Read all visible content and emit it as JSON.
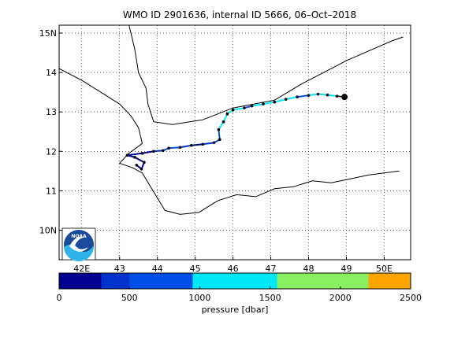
{
  "title": "WMO ID 2901636, internal ID 5666, 06–Oct–2018",
  "map": {
    "lon_range": [
      41.4,
      50.7
    ],
    "lat_range": [
      9.25,
      15.2
    ],
    "x_ticks": [
      42,
      43,
      44,
      45,
      46,
      47,
      48,
      49,
      50
    ],
    "x_tick_labels": [
      "42E",
      "43",
      "44",
      "45",
      "46",
      "47",
      "48",
      "49",
      "50E"
    ],
    "y_ticks": [
      10,
      11,
      12,
      13,
      14,
      15
    ],
    "y_tick_labels": [
      "10N",
      "11",
      "12",
      "13",
      "14",
      "15N"
    ],
    "grid": "dotted",
    "coastlines": [
      [
        [
          43.2,
          15.4
        ],
        [
          43.4,
          14.6
        ],
        [
          43.5,
          14.0
        ],
        [
          43.7,
          13.6
        ],
        [
          43.75,
          13.2
        ],
        [
          43.9,
          12.75
        ],
        [
          44.4,
          12.68
        ],
        [
          45.2,
          12.8
        ],
        [
          46.0,
          13.1
        ],
        [
          47.1,
          13.3
        ],
        [
          47.8,
          13.7
        ],
        [
          48.2,
          13.9
        ],
        [
          49.0,
          14.3
        ],
        [
          49.6,
          14.55
        ],
        [
          50.2,
          14.8
        ],
        [
          50.5,
          14.9
        ]
      ],
      [
        [
          41.4,
          14.1
        ],
        [
          42.0,
          13.8
        ],
        [
          42.5,
          13.5
        ],
        [
          43.0,
          13.2
        ],
        [
          43.3,
          12.9
        ],
        [
          43.5,
          12.6
        ],
        [
          43.6,
          12.2
        ],
        [
          43.25,
          11.95
        ],
        [
          43.0,
          11.7
        ],
        [
          43.35,
          11.58
        ],
        [
          43.6,
          11.45
        ],
        [
          43.85,
          11.05
        ],
        [
          44.2,
          10.5
        ],
        [
          44.6,
          10.4
        ],
        [
          45.1,
          10.45
        ],
        [
          45.6,
          10.75
        ],
        [
          46.1,
          10.9
        ],
        [
          46.6,
          10.85
        ],
        [
          47.1,
          11.05
        ],
        [
          47.6,
          11.1
        ],
        [
          48.1,
          11.25
        ],
        [
          48.6,
          11.2
        ],
        [
          49.1,
          11.3
        ],
        [
          49.6,
          11.4
        ],
        [
          50.4,
          11.5
        ]
      ]
    ]
  },
  "trajectory": {
    "points": [
      [
        43.45,
        11.65
      ],
      [
        43.58,
        11.55
      ],
      [
        43.65,
        11.72
      ],
      [
        43.4,
        11.85
      ],
      [
        43.2,
        11.9
      ],
      [
        43.6,
        11.95
      ],
      [
        43.9,
        12.0
      ],
      [
        44.15,
        12.02
      ],
      [
        44.3,
        12.08
      ],
      [
        44.6,
        12.1
      ],
      [
        44.9,
        12.15
      ],
      [
        45.2,
        12.18
      ],
      [
        45.5,
        12.22
      ],
      [
        45.65,
        12.3
      ],
      [
        45.62,
        12.55
      ],
      [
        45.75,
        12.75
      ],
      [
        45.85,
        12.95
      ],
      [
        46.0,
        13.05
      ],
      [
        46.3,
        13.1
      ],
      [
        46.5,
        13.15
      ],
      [
        46.8,
        13.2
      ],
      [
        47.1,
        13.25
      ],
      [
        47.4,
        13.32
      ],
      [
        47.7,
        13.38
      ],
      [
        48.0,
        13.42
      ],
      [
        48.25,
        13.45
      ],
      [
        48.5,
        13.43
      ],
      [
        48.75,
        13.4
      ]
    ],
    "pressure": [
      80,
      100,
      150,
      60,
      40,
      200,
      350,
      500,
      700,
      300,
      250,
      400,
      600,
      900,
      1100,
      1300,
      1200,
      1000,
      800,
      1150,
      1400,
      1250,
      1050,
      900,
      1100,
      1200,
      1000,
      800
    ],
    "final_position": [
      48.95,
      13.38
    ],
    "marker_color": "#000000"
  },
  "colorbar": {
    "label": "pressure [dbar]",
    "tick_values": [
      0,
      500,
      1000,
      1500,
      2000,
      2500
    ],
    "tick_labels": [
      "0",
      "500",
      "1000",
      "1500",
      "2000",
      "2500"
    ],
    "bands": [
      {
        "from": 0,
        "to": 150,
        "color": "#00008f"
      },
      {
        "from": 150,
        "to": 300,
        "color": "#00008f"
      },
      {
        "from": 300,
        "to": 500,
        "color": "#0033cc"
      },
      {
        "from": 500,
        "to": 950,
        "color": "#0050e8"
      },
      {
        "from": 950,
        "to": 1550,
        "color": "#00e8f8"
      },
      {
        "from": 1550,
        "to": 2000,
        "color": "#88f060"
      },
      {
        "from": 2000,
        "to": 2200,
        "color": "#88f060"
      },
      {
        "from": 2200,
        "to": 2500,
        "color": "#ffa500"
      }
    ]
  },
  "logo": {
    "text": "NOAA",
    "colors": {
      "sky": "#1a4a9a",
      "sea": "#2fb3e8",
      "gull": "#ffffff"
    }
  }
}
